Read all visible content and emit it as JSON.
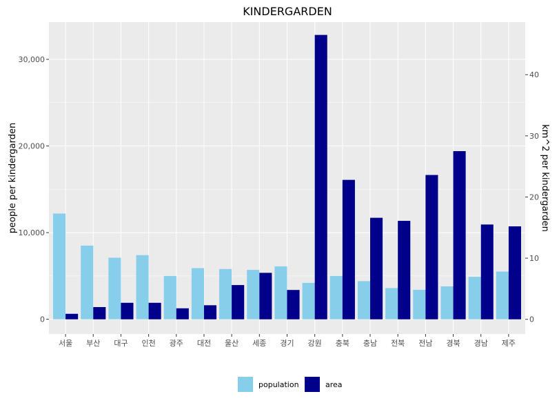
{
  "chart_data": {
    "type": "bar",
    "title": "KINDERGARDEN",
    "ylabel_left": "people per kindergarden",
    "ylabel_right": "km^2 per kindergarden",
    "categories": [
      "서울",
      "부산",
      "대구",
      "인천",
      "광주",
      "대전",
      "울산",
      "세종",
      "경기",
      "강원",
      "충북",
      "충남",
      "전북",
      "전남",
      "경북",
      "경남",
      "제주"
    ],
    "y_left": {
      "lim": [
        -1700,
        34300
      ],
      "ticks": [
        0,
        10000,
        20000,
        30000
      ],
      "tick_labels": [
        "0",
        "10,000",
        "20,000",
        "30,000"
      ]
    },
    "y_right": {
      "lim": [
        -2.4,
        48.6
      ],
      "ticks": [
        0,
        10,
        20,
        30,
        40
      ],
      "tick_labels": [
        "0",
        "10",
        "20",
        "30",
        "40"
      ]
    },
    "series": [
      {
        "name": "population",
        "color": "#87CEEB",
        "axis": "left",
        "values": [
          12200,
          8500,
          7100,
          7400,
          5000,
          5900,
          5800,
          5700,
          6100,
          4200,
          5000,
          4400,
          3600,
          3400,
          3800,
          4900,
          5500
        ]
      },
      {
        "name": "area",
        "color": "#00008B",
        "axis": "right",
        "values": [
          0.9,
          2.0,
          2.7,
          2.7,
          1.8,
          2.3,
          5.6,
          7.6,
          4.8,
          46.5,
          22.8,
          16.6,
          16.1,
          23.6,
          27.5,
          15.5,
          15.2
        ]
      }
    ],
    "grid": true,
    "legend_position": "bottom",
    "panel_color": "#EBEBEB"
  }
}
